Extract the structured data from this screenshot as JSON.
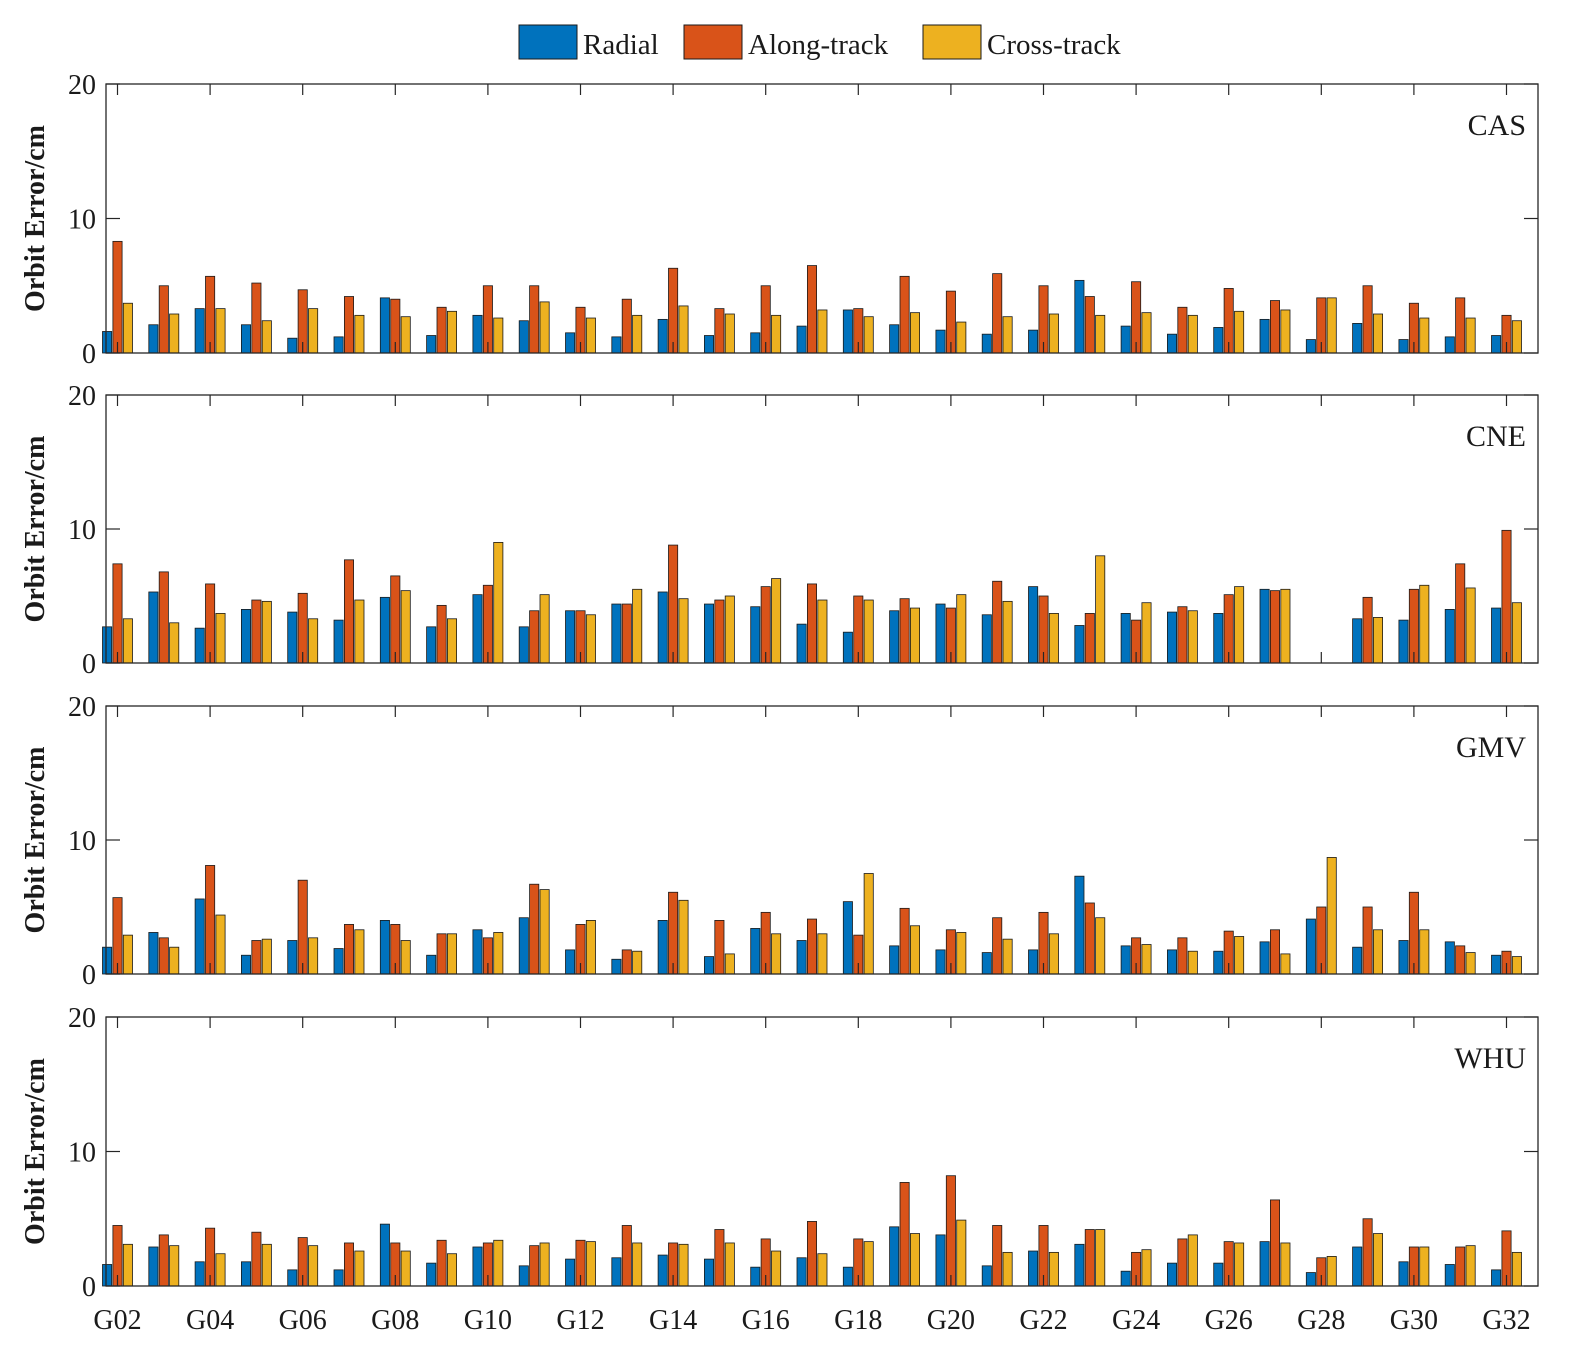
{
  "chart_data": {
    "type": "bar",
    "ylabel": "Orbit Error/cm",
    "ylim": [
      0,
      20
    ],
    "yticks": [
      0,
      10,
      20
    ],
    "legend": {
      "placement": "top-center",
      "layout": "horizontal"
    },
    "grid": false,
    "colors": {
      "Radial": "#0072BD",
      "Along-track": "#D95319",
      "Cross-track": "#EDB120"
    },
    "categories": [
      "G02",
      "G03",
      "G04",
      "G05",
      "G06",
      "G07",
      "G08",
      "G09",
      "G10",
      "G11",
      "G12",
      "G13",
      "G14",
      "G15",
      "G16",
      "G17",
      "G18",
      "G19",
      "G20",
      "G21",
      "G22",
      "G23",
      "G24",
      "G25",
      "G26",
      "G27",
      "G28",
      "G29",
      "G30",
      "G31",
      "G32"
    ],
    "x_tick_labels": [
      "G02",
      "G04",
      "G06",
      "G08",
      "G10",
      "G12",
      "G14",
      "G16",
      "G18",
      "G20",
      "G22",
      "G24",
      "G26",
      "G28",
      "G30",
      "G32"
    ],
    "series_names": [
      "Radial",
      "Along-track",
      "Cross-track"
    ],
    "panels": [
      {
        "label": "CAS",
        "series": [
          {
            "name": "Radial",
            "values": [
              1.6,
              2.1,
              3.3,
              2.1,
              1.1,
              1.2,
              4.1,
              1.3,
              2.8,
              2.4,
              1.5,
              1.2,
              2.5,
              1.3,
              1.5,
              2.0,
              3.2,
              2.1,
              1.7,
              1.4,
              1.7,
              5.4,
              2.0,
              1.4,
              1.9,
              2.5,
              1.0,
              2.2,
              1.0,
              1.2,
              1.3
            ]
          },
          {
            "name": "Along-track",
            "values": [
              8.3,
              5.0,
              5.7,
              5.2,
              4.7,
              4.2,
              4.0,
              3.4,
              5.0,
              5.0,
              3.4,
              4.0,
              6.3,
              3.3,
              5.0,
              6.5,
              3.3,
              5.7,
              4.6,
              5.9,
              5.0,
              4.2,
              5.3,
              3.4,
              4.8,
              3.9,
              4.1,
              5.0,
              3.7,
              4.1,
              2.8
            ]
          },
          {
            "name": "Cross-track",
            "values": [
              3.7,
              2.9,
              3.3,
              2.4,
              3.3,
              2.8,
              2.7,
              3.1,
              2.6,
              3.8,
              2.6,
              2.8,
              3.5,
              2.9,
              2.8,
              3.2,
              2.7,
              3.0,
              2.3,
              2.7,
              2.9,
              2.8,
              3.0,
              2.8,
              3.1,
              3.2,
              4.1,
              2.9,
              2.6,
              2.6,
              2.4
            ]
          }
        ]
      },
      {
        "label": "CNE",
        "series": [
          {
            "name": "Radial",
            "values": [
              2.7,
              5.3,
              2.6,
              4.0,
              3.8,
              3.2,
              4.9,
              2.7,
              5.1,
              2.7,
              3.9,
              4.4,
              5.3,
              4.4,
              4.2,
              2.9,
              2.3,
              3.9,
              4.4,
              3.6,
              5.7,
              2.8,
              3.7,
              3.8,
              3.7,
              5.5,
              0,
              3.3,
              3.2,
              4.0,
              4.1
            ]
          },
          {
            "name": "Along-track",
            "values": [
              7.4,
              6.8,
              5.9,
              4.7,
              5.2,
              7.7,
              6.5,
              4.3,
              5.8,
              3.9,
              3.9,
              4.4,
              8.8,
              4.7,
              5.7,
              5.9,
              5.0,
              4.8,
              4.1,
              6.1,
              5.0,
              3.7,
              3.2,
              4.2,
              5.1,
              5.4,
              0,
              4.9,
              5.5,
              7.4,
              9.9
            ]
          },
          {
            "name": "Cross-track",
            "values": [
              3.3,
              3.0,
              3.7,
              4.6,
              3.3,
              4.7,
              5.4,
              3.3,
              9.0,
              5.1,
              3.6,
              5.5,
              4.8,
              5.0,
              6.3,
              4.7,
              4.7,
              4.1,
              5.1,
              4.6,
              3.7,
              8.0,
              4.5,
              3.9,
              5.7,
              5.5,
              0,
              3.4,
              5.8,
              5.6,
              4.5
            ]
          }
        ]
      },
      {
        "label": "GMV",
        "series": [
          {
            "name": "Radial",
            "values": [
              2.0,
              3.1,
              5.6,
              1.4,
              2.5,
              1.9,
              4.0,
              1.4,
              3.3,
              4.2,
              1.8,
              1.1,
              4.0,
              1.3,
              3.4,
              2.5,
              5.4,
              2.1,
              1.8,
              1.6,
              1.8,
              7.3,
              2.1,
              1.8,
              1.7,
              2.4,
              4.1,
              2.0,
              2.5,
              2.4,
              1.4
            ]
          },
          {
            "name": "Along-track",
            "values": [
              5.7,
              2.7,
              8.1,
              2.5,
              7.0,
              3.7,
              3.7,
              3.0,
              2.7,
              6.7,
              3.7,
              1.8,
              6.1,
              4.0,
              4.6,
              4.1,
              2.9,
              4.9,
              3.3,
              4.2,
              4.6,
              5.3,
              2.7,
              2.7,
              3.2,
              3.3,
              5.0,
              5.0,
              6.1,
              2.1,
              1.7
            ]
          },
          {
            "name": "Cross-track",
            "values": [
              2.9,
              2.0,
              4.4,
              2.6,
              2.7,
              3.3,
              2.5,
              3.0,
              3.1,
              6.3,
              4.0,
              1.7,
              5.5,
              1.5,
              3.0,
              3.0,
              7.5,
              3.6,
              3.1,
              2.6,
              3.0,
              4.2,
              2.2,
              1.7,
              2.8,
              1.5,
              8.7,
              3.3,
              3.3,
              1.6,
              1.3
            ]
          }
        ]
      },
      {
        "label": "WHU",
        "series": [
          {
            "name": "Radial",
            "values": [
              1.6,
              2.9,
              1.8,
              1.8,
              1.2,
              1.2,
              4.6,
              1.7,
              2.9,
              1.5,
              2.0,
              2.1,
              2.3,
              2.0,
              1.4,
              2.1,
              1.4,
              4.4,
              3.8,
              1.5,
              2.6,
              3.1,
              1.1,
              1.7,
              1.7,
              3.3,
              1.0,
              2.9,
              1.8,
              1.6,
              1.2
            ]
          },
          {
            "name": "Along-track",
            "values": [
              4.5,
              3.8,
              4.3,
              4.0,
              3.6,
              3.2,
              3.2,
              3.4,
              3.2,
              3.0,
              3.4,
              4.5,
              3.2,
              4.2,
              3.5,
              4.8,
              3.5,
              7.7,
              8.2,
              4.5,
              4.5,
              4.2,
              2.5,
              3.5,
              3.3,
              6.4,
              2.1,
              5.0,
              2.9,
              2.9,
              4.1
            ]
          },
          {
            "name": "Cross-track",
            "values": [
              3.1,
              3.0,
              2.4,
              3.1,
              3.0,
              2.6,
              2.6,
              2.4,
              3.4,
              3.2,
              3.3,
              3.2,
              3.1,
              3.2,
              2.6,
              2.4,
              3.3,
              3.9,
              4.9,
              2.5,
              2.5,
              4.2,
              2.7,
              3.8,
              3.2,
              3.2,
              2.2,
              3.9,
              2.9,
              3.0,
              2.5
            ]
          }
        ]
      }
    ]
  }
}
